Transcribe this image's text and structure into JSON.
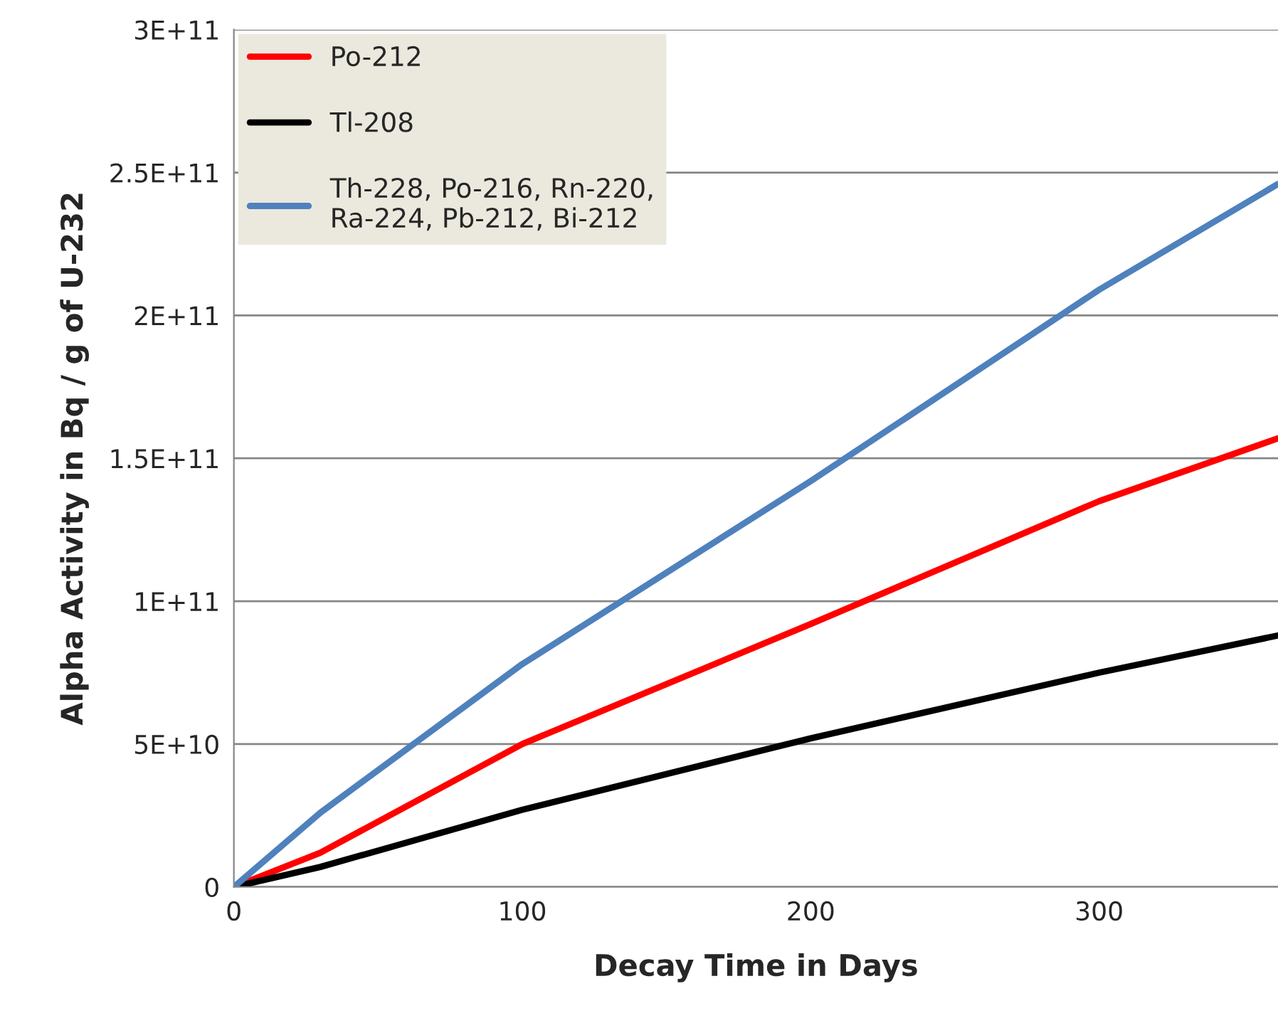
{
  "chart_data": {
    "type": "line",
    "xlabel": "Decay Time in Days",
    "ylabel": "Alpha Activity in Bq / g of U-232",
    "x": [
      0,
      30,
      100,
      200,
      300,
      362
    ],
    "series": [
      {
        "name": "Po-212",
        "color": "#ff0000",
        "values": [
          0,
          12000000000.0,
          50000000000.0,
          92000000000.0,
          135000000000.0,
          157000000000.0
        ]
      },
      {
        "name": "Tl-208",
        "color": "#000000",
        "values": [
          0,
          7000000000.0,
          27000000000.0,
          52000000000.0,
          75000000000.0,
          88000000000.0
        ]
      },
      {
        "name": "Th-228, Po-216, Rn-220,\nRa-224, Pb-212, Bi-212",
        "color": "#4f81bd",
        "values": [
          0,
          26000000000.0,
          78000000000.0,
          142000000000.0,
          209000000000.0,
          246000000000.0
        ]
      }
    ],
    "xlim": [
      0,
      362
    ],
    "xticks": [
      0,
      100,
      200,
      300
    ],
    "ylim": [
      0,
      300000000000.0
    ],
    "yticks": [
      {
        "value": 0,
        "label": "0"
      },
      {
        "value": 50000000000.0,
        "label": "5E+10"
      },
      {
        "value": 100000000000.0,
        "label": "1E+11"
      },
      {
        "value": 150000000000.0,
        "label": "1.5E+11"
      },
      {
        "value": 200000000000.0,
        "label": "2E+11"
      },
      {
        "value": 250000000000.0,
        "label": "2.5E+11"
      },
      {
        "value": 300000000000.0,
        "label": "3E+11"
      }
    ],
    "grid": "y",
    "legend": "top left",
    "marker": "none",
    "line_style": "solid"
  }
}
